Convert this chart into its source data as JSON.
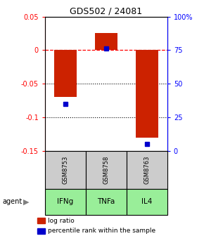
{
  "title": "GDS502 / 24081",
  "samples": [
    "GSM8753",
    "GSM8758",
    "GSM8763"
  ],
  "agents": [
    "IFNg",
    "TNFa",
    "IL4"
  ],
  "log_ratios": [
    -0.07,
    0.025,
    -0.13
  ],
  "percentile_ranks": [
    35,
    76,
    5
  ],
  "ylim_left": [
    -0.15,
    0.05
  ],
  "ylim_right": [
    0,
    100
  ],
  "bar_color": "#cc2200",
  "dot_color": "#0000cc",
  "agent_color": "#99ee99",
  "sample_bg": "#cccccc",
  "bar_width": 0.55,
  "left_ticks": [
    -0.15,
    -0.1,
    -0.05,
    0,
    0.05
  ],
  "left_tick_labels": [
    "-0.15",
    "-0.1",
    "-0.05",
    "0",
    "0.05"
  ],
  "right_ticks": [
    0,
    25,
    50,
    75,
    100
  ],
  "right_tick_labels": [
    "0",
    "25",
    "50",
    "75",
    "100%"
  ]
}
